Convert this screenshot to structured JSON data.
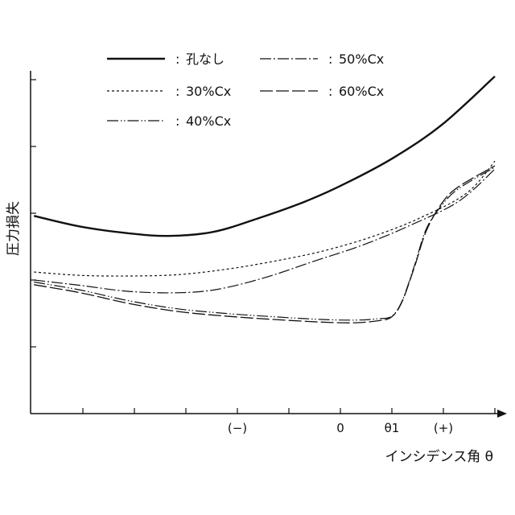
{
  "chart_data": {
    "type": "line",
    "title": "",
    "xlabel": "インシデンス角 θ",
    "ylabel": "圧力損失",
    "xlim": [
      -6,
      3.2
    ],
    "ylim": [
      0,
      5.1
    ],
    "x_ticks": [
      -5,
      -4,
      -3,
      -2,
      -1,
      0,
      1,
      2,
      3
    ],
    "x_tick_labels": [
      {
        "x": -2,
        "label": "(−)"
      },
      {
        "x": 0,
        "label": "0"
      },
      {
        "x": 1,
        "label": "θ1"
      },
      {
        "x": 2,
        "label": "(+)"
      }
    ],
    "y_ticks": [
      1,
      2,
      3,
      4,
      5
    ],
    "grid": false,
    "legend_position": "top",
    "series": [
      {
        "name": "孔なし",
        "style": "solid-bold",
        "x": [
          -5.95,
          -5.05,
          -4.11,
          -3.33,
          -2.47,
          -1.61,
          -0.67,
          0.11,
          1.05,
          1.98,
          3.0
        ],
        "y": [
          2.96,
          2.8,
          2.7,
          2.66,
          2.72,
          2.92,
          3.18,
          3.45,
          3.84,
          4.33,
          5.05
        ]
      },
      {
        "name": "30%Cx",
        "style": "dotted",
        "x": [
          -5.95,
          -5.05,
          -4.11,
          -3.17,
          -2.23,
          -1.3,
          -0.36,
          0.58,
          1.52,
          2.45,
          3.0
        ],
        "y": [
          2.12,
          2.07,
          2.06,
          2.08,
          2.16,
          2.28,
          2.43,
          2.64,
          2.92,
          3.3,
          3.78
        ]
      },
      {
        "name": "40%Cx",
        "style": "dash-dot-dot",
        "x": [
          -5.95,
          -5.05,
          -4.11,
          -3.17,
          -2.23,
          -1.3,
          -0.36,
          0.27,
          0.73,
          1.0,
          1.2,
          1.44,
          1.67,
          1.98,
          2.3,
          3.0
        ],
        "y": [
          1.97,
          1.85,
          1.69,
          1.57,
          1.5,
          1.45,
          1.41,
          1.4,
          1.42,
          1.46,
          1.69,
          2.22,
          2.77,
          3.13,
          3.37,
          3.69
        ]
      },
      {
        "name": "50%Cx",
        "style": "dash-dot",
        "x": [
          -5.95,
          -5.05,
          -4.11,
          -3.17,
          -2.39,
          -1.45,
          -0.52,
          0.42,
          1.36,
          2.3,
          3.0
        ],
        "y": [
          2.0,
          1.92,
          1.83,
          1.81,
          1.86,
          2.04,
          2.28,
          2.52,
          2.82,
          3.18,
          3.66
        ]
      },
      {
        "name": "60%Cx",
        "style": "dashed",
        "x": [
          -5.95,
          -5.05,
          -4.11,
          -3.17,
          -2.23,
          -1.3,
          -0.36,
          0.27,
          0.73,
          1.0,
          1.2,
          1.44,
          1.67,
          1.98,
          2.3,
          3.0
        ],
        "y": [
          1.93,
          1.81,
          1.65,
          1.53,
          1.46,
          1.41,
          1.37,
          1.36,
          1.39,
          1.45,
          1.68,
          2.2,
          2.74,
          3.16,
          3.4,
          3.71
        ]
      }
    ]
  },
  "legend_sep": ":"
}
